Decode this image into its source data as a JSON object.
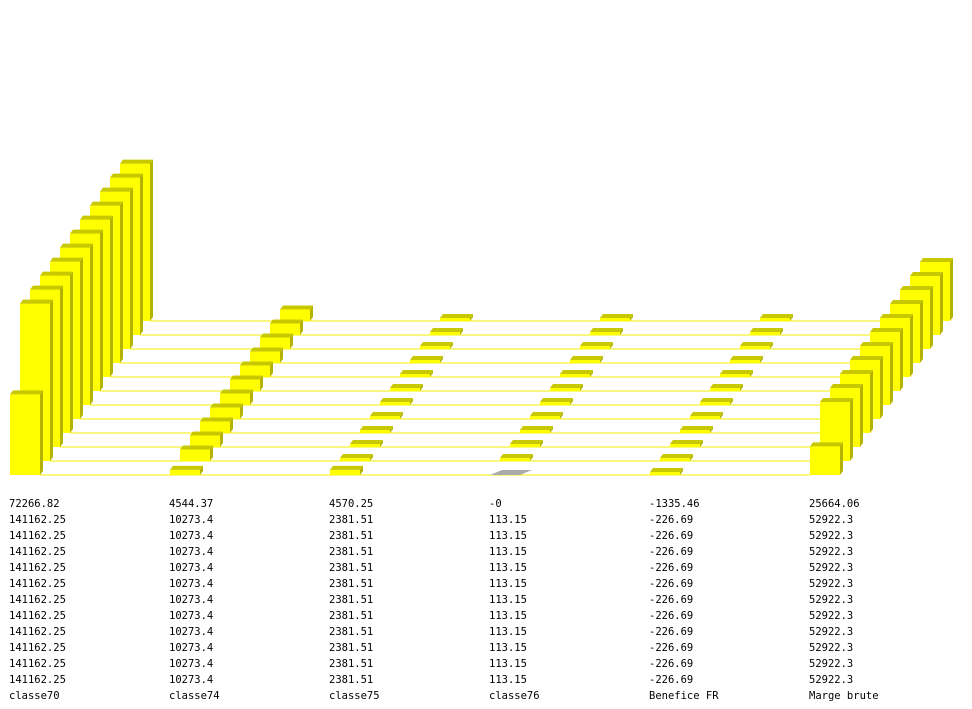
{
  "chart_data": {
    "type": "bar",
    "style": "3d-stacked-depth",
    "categories": [
      "classe70",
      "classe74",
      "classe75",
      "classe76",
      "Benefice FR",
      "Marge brute"
    ],
    "rows": 12,
    "values": [
      [
        "72266.82",
        "4544.37",
        "4570.25",
        "-0",
        "-1335.46",
        "25664.06"
      ],
      [
        "141162.25",
        "10273.4",
        "2381.51",
        "113.15",
        "-226.69",
        "52922.3"
      ],
      [
        "141162.25",
        "10273.4",
        "2381.51",
        "113.15",
        "-226.69",
        "52922.3"
      ],
      [
        "141162.25",
        "10273.4",
        "2381.51",
        "113.15",
        "-226.69",
        "52922.3"
      ],
      [
        "141162.25",
        "10273.4",
        "2381.51",
        "113.15",
        "-226.69",
        "52922.3"
      ],
      [
        "141162.25",
        "10273.4",
        "2381.51",
        "113.15",
        "-226.69",
        "52922.3"
      ],
      [
        "141162.25",
        "10273.4",
        "2381.51",
        "113.15",
        "-226.69",
        "52922.3"
      ],
      [
        "141162.25",
        "10273.4",
        "2381.51",
        "113.15",
        "-226.69",
        "52922.3"
      ],
      [
        "141162.25",
        "10273.4",
        "2381.51",
        "113.15",
        "-226.69",
        "52922.3"
      ],
      [
        "141162.25",
        "10273.4",
        "2381.51",
        "113.15",
        "-226.69",
        "52922.3"
      ],
      [
        "141162.25",
        "10273.4",
        "2381.51",
        "113.15",
        "-226.69",
        "52922.3"
      ],
      [
        "141162.25",
        "10273.4",
        "2381.51",
        "113.15",
        "-226.69",
        "52922.3"
      ]
    ],
    "grid": true,
    "legend": "none"
  },
  "colors": {
    "bar_front": "#ffff00",
    "bar_top": "#c8c800",
    "bar_side": "#b4b400",
    "zero_bar": "#aaaaaa",
    "gridline": "#f0f000"
  }
}
